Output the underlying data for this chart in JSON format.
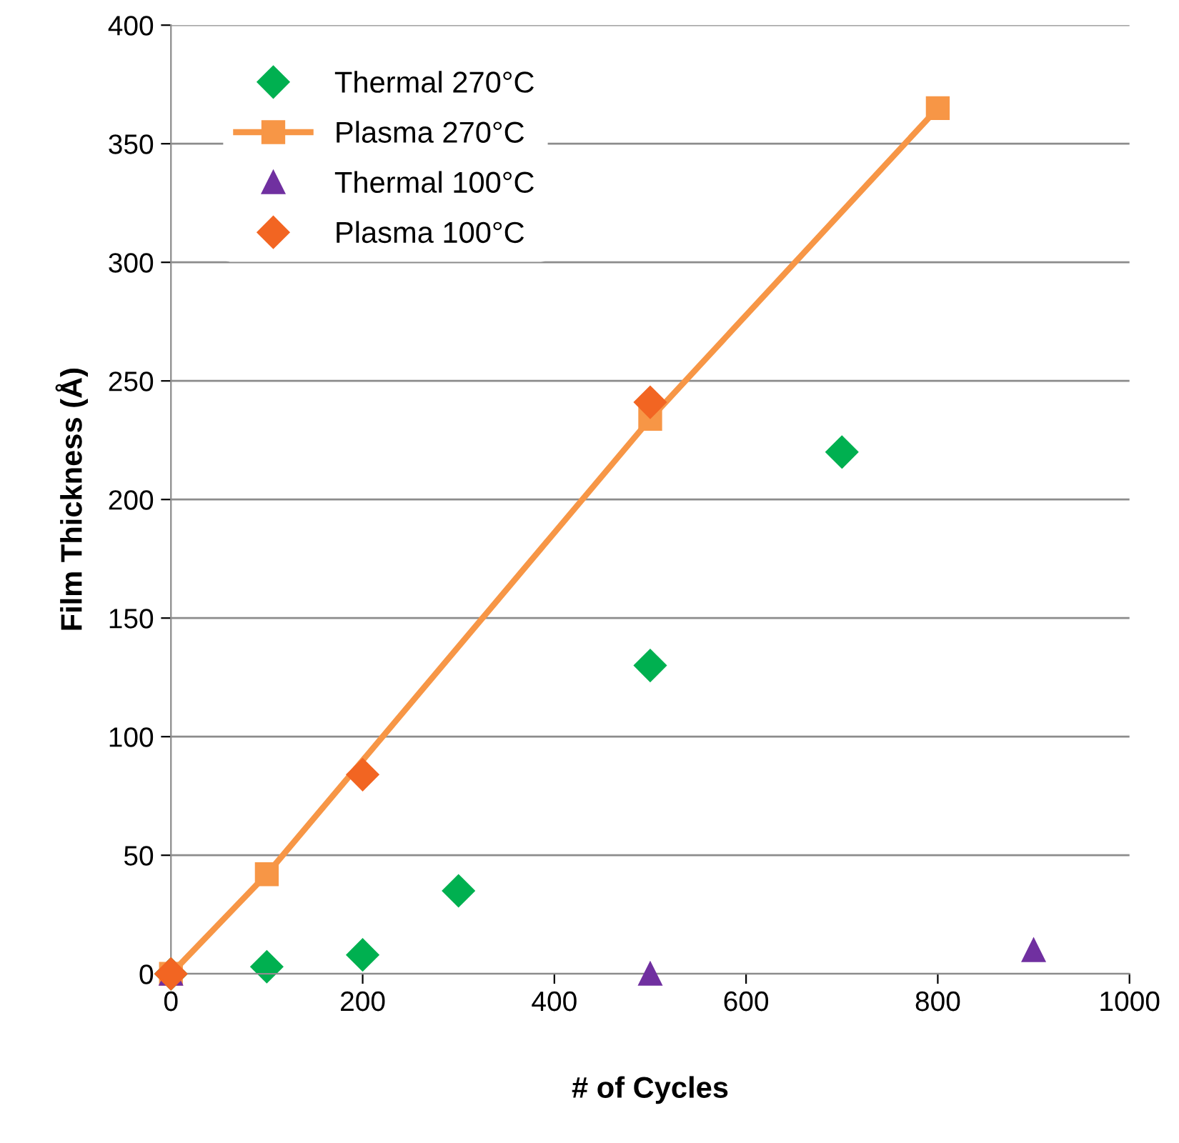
{
  "chart_data": {
    "type": "scatter",
    "xlabel": "# of Cycles",
    "ylabel": "Film Thickness (Å)",
    "xlim": [
      0,
      1000
    ],
    "xticks": [
      0,
      200,
      400,
      600,
      800,
      1000
    ],
    "ylim": [
      0,
      400
    ],
    "yticks": [
      0,
      50,
      100,
      150,
      200,
      250,
      300,
      350,
      400
    ],
    "grid": "y",
    "legend": "top left",
    "series": [
      {
        "name": "Thermal 270°C",
        "marker": "diamond",
        "color": "#00b050",
        "x": [
          0,
          100,
          200,
          300,
          500,
          700
        ],
        "values": [
          0,
          3,
          8,
          35,
          130,
          220
        ]
      },
      {
        "name": "Plasma 270°C",
        "type": "line",
        "marker": "square",
        "line_style": "solid",
        "color": "#f79646",
        "x": [
          0,
          100,
          500,
          800
        ],
        "values": [
          0,
          42,
          234,
          365
        ]
      },
      {
        "name": "Thermal 100°C",
        "marker": "triangle",
        "color": "#7030a0",
        "x": [
          0,
          500,
          900
        ],
        "values": [
          0,
          0,
          10
        ]
      },
      {
        "name": "Plasma 100°C",
        "marker": "diamond",
        "color": "#f26522",
        "x": [
          0,
          200,
          500
        ],
        "values": [
          0,
          84,
          241
        ]
      }
    ]
  }
}
